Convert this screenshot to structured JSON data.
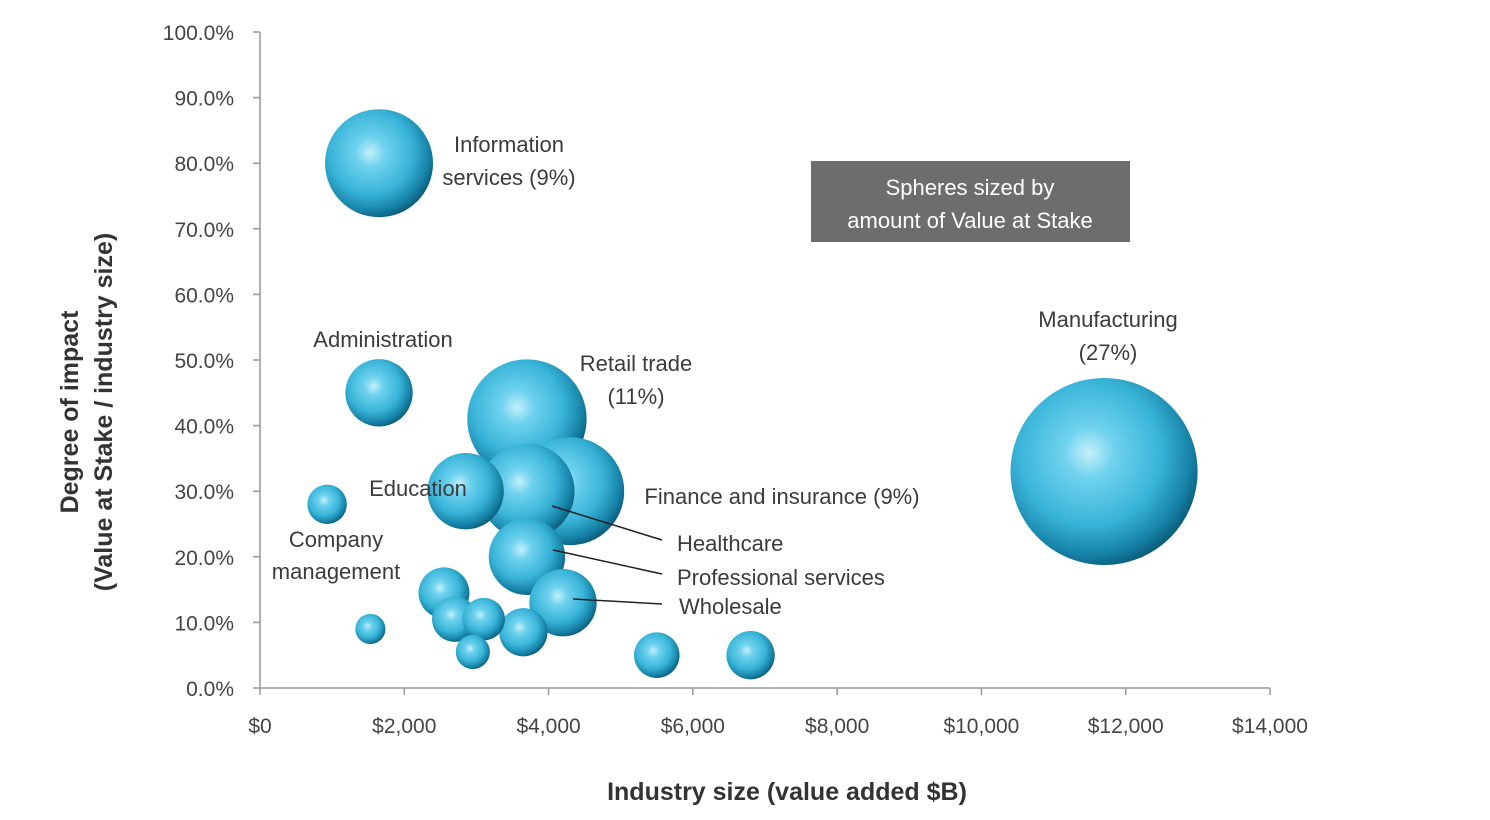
{
  "chart_data": {
    "type": "scatter",
    "subtype": "bubble",
    "xlabel": "Industry size (value added $B)",
    "ylabel_lines": [
      "Degree of impact",
      "(Value at Stake / industry size)"
    ],
    "xlim": [
      0,
      14000
    ],
    "ylim": [
      0,
      1.0
    ],
    "x_ticks": [
      {
        "value": 0,
        "label": "$0"
      },
      {
        "value": 2000,
        "label": "$2,000"
      },
      {
        "value": 4000,
        "label": "$4,000"
      },
      {
        "value": 6000,
        "label": "$6,000"
      },
      {
        "value": 8000,
        "label": "$8,000"
      },
      {
        "value": 10000,
        "label": "$10,000"
      },
      {
        "value": 12000,
        "label": "$12,000"
      },
      {
        "value": 14000,
        "label": "$14,000"
      }
    ],
    "y_ticks": [
      {
        "value": 0.0,
        "label": "0.0%"
      },
      {
        "value": 0.1,
        "label": "10.0%"
      },
      {
        "value": 0.2,
        "label": "20.0%"
      },
      {
        "value": 0.3,
        "label": "30.0%"
      },
      {
        "value": 0.4,
        "label": "40.0%"
      },
      {
        "value": 0.5,
        "label": "50.0%"
      },
      {
        "value": 0.6,
        "label": "60.0%"
      },
      {
        "value": 0.7,
        "label": "70.0%"
      },
      {
        "value": 0.8,
        "label": "80.0%"
      },
      {
        "value": 0.9,
        "label": "90.0%"
      },
      {
        "value": 1.0,
        "label": "100.0%"
      }
    ],
    "grid": false,
    "legend": null,
    "note": {
      "lines": [
        "Spheres sized by",
        "amount of Value at Stake"
      ],
      "placement": "top-right",
      "bg_color": "#6d6d6d"
    },
    "bubble_color": "#38b4d8",
    "bubble_dark": "#0b5f7c",
    "points": [
      {
        "name": "Information services",
        "x": 1650,
        "y": 0.8,
        "size": 9,
        "label_lines": [
          "Information",
          "services (9%)"
        ]
      },
      {
        "name": "Administration",
        "x": 1650,
        "y": 0.45,
        "size": 3.5,
        "label_lines": [
          "Administration"
        ]
      },
      {
        "name": "Company management",
        "x": 930,
        "y": 0.28,
        "size": 1.2,
        "label_lines": [
          "Company",
          "management"
        ]
      },
      {
        "name": "Education",
        "x": 2850,
        "y": 0.3,
        "size": 4.5,
        "label_lines": [
          "Education"
        ]
      },
      {
        "name": "Retail trade",
        "x": 3700,
        "y": 0.41,
        "size": 11,
        "label_lines": [
          "Retail trade",
          "(11%)"
        ]
      },
      {
        "name": "Finance and insurance",
        "x": 4300,
        "y": 0.3,
        "size": 9,
        "label_lines": [
          "Finance and insurance (9%)"
        ]
      },
      {
        "name": "Healthcare",
        "x": 3700,
        "y": 0.3,
        "size": 7,
        "label_lines": [
          "Healthcare"
        ]
      },
      {
        "name": "Professional services",
        "x": 3700,
        "y": 0.2,
        "size": 4.5,
        "label_lines": [
          "Professional services"
        ]
      },
      {
        "name": "Wholesale",
        "x": 4200,
        "y": 0.13,
        "size": 3.5,
        "label_lines": [
          "Wholesale"
        ]
      },
      {
        "name": "Manufacturing",
        "x": 11700,
        "y": 0.33,
        "size": 27,
        "label_lines": [
          "Manufacturing",
          "(27%)"
        ]
      },
      {
        "name": "",
        "x": 2550,
        "y": 0.145,
        "size": 2.0
      },
      {
        "name": "",
        "x": 2700,
        "y": 0.105,
        "size": 1.6
      },
      {
        "name": "",
        "x": 3100,
        "y": 0.105,
        "size": 1.4
      },
      {
        "name": "",
        "x": 3650,
        "y": 0.085,
        "size": 1.8
      },
      {
        "name": "",
        "x": 2950,
        "y": 0.055,
        "size": 0.9
      },
      {
        "name": "",
        "x": 1530,
        "y": 0.09,
        "size": 0.7
      },
      {
        "name": "",
        "x": 5500,
        "y": 0.05,
        "size": 1.6
      },
      {
        "name": "",
        "x": 6800,
        "y": 0.05,
        "size": 1.8
      }
    ]
  }
}
